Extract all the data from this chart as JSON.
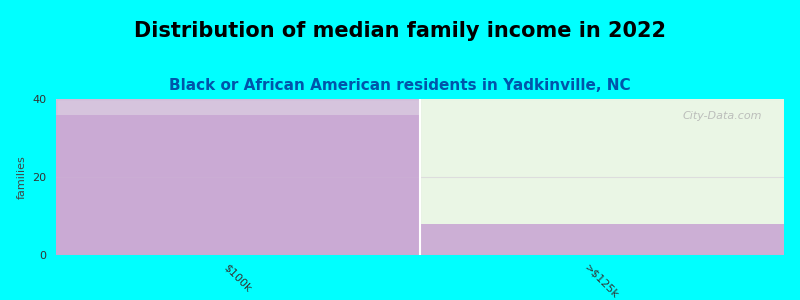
{
  "title": "Distribution of median family income in 2022",
  "subtitle": "Black or African American residents in Yadkinville, NC",
  "categories": [
    "$100k",
    ">$125k"
  ],
  "values": [
    36,
    8
  ],
  "ylim": [
    0,
    40
  ],
  "yticks": [
    0,
    20,
    40
  ],
  "bar_color": "#c9a8d4",
  "bg_color_left": "#c9a8d4",
  "bg_color_right": "#e8f5e2",
  "plot_bg": "#f0faf0",
  "background": "#00ffff",
  "ylabel": "families",
  "title_fontsize": 15,
  "subtitle_fontsize": 11,
  "watermark": "City-Data.com"
}
